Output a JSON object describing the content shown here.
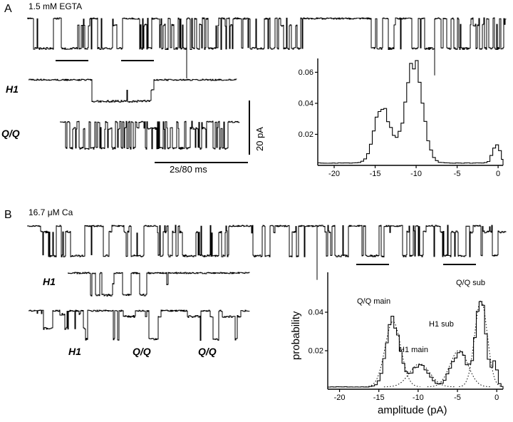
{
  "figure": {
    "panelA": {
      "label": "A",
      "condition": "1.5 mM EGTA",
      "trace1_label": "H1",
      "trace2_label": "Q/Q",
      "scale_v": "20 pA",
      "scale_h": "2s/80 ms"
    },
    "panelB": {
      "label": "B",
      "condition": "16.7 μM Ca",
      "h1_label": "H1",
      "bottom_labels": [
        "H1",
        "Q/Q",
        "Q/Q"
      ],
      "ylabel": "probability",
      "xlabel": "amplitude (pA)",
      "annotations": [
        "Q/Q main",
        "H1 main",
        "H1 sub",
        "Q/Q sub"
      ]
    }
  },
  "chart_data": [
    {
      "id": "traceA_top",
      "type": "line",
      "style": "single_channel_trace",
      "title": "continuous recording, 1.5 mM EGTA, openings downward",
      "baseline": 12,
      "amp": 42,
      "seed": 9,
      "flicker": 0.45,
      "subp": 0.22,
      "subdepth": 0.22,
      "segments": [
        [
          0,
          0.05,
          0.7
        ],
        [
          0.05,
          0.07,
          0.05
        ],
        [
          0.07,
          0.2,
          0.8
        ],
        [
          0.2,
          0.23,
          0.05
        ],
        [
          0.23,
          0.33,
          0.8
        ],
        [
          0.33,
          0.345,
          0.1
        ],
        [
          0.345,
          0.43,
          0.6
        ],
        [
          0.43,
          0.46,
          0.05
        ],
        [
          0.46,
          0.575,
          0.75
        ],
        [
          0.575,
          0.71,
          0.01
        ],
        [
          0.71,
          0.78,
          0.7
        ],
        [
          0.78,
          0.8,
          0.03
        ],
        [
          0.8,
          0.85,
          0.75
        ],
        [
          0.85,
          0.875,
          0.02
        ],
        [
          0.875,
          1,
          0.7
        ]
      ],
      "spikes": [
        [
          0.334,
          2.0
        ],
        [
          0.851,
          1.9
        ]
      ]
    },
    {
      "id": "traceA_h1",
      "type": "line",
      "style": "single_channel_trace",
      "title": "H1 expanded segment",
      "baseline": 9,
      "amp": 30,
      "seed": 3,
      "flicker": 0.12,
      "subp": 0.2,
      "subdepth": 0.5,
      "segments": [
        [
          0,
          0.045,
          0
        ],
        [
          0.045,
          0.1,
          0.45
        ],
        [
          0.1,
          0.42,
          0.06
        ],
        [
          0.42,
          0.5,
          0.5
        ],
        [
          0.5,
          0.56,
          0.35
        ],
        [
          0.56,
          0.6,
          0.5
        ],
        [
          0.6,
          0.62,
          0.2
        ],
        [
          0.62,
          1,
          0
        ]
      ]
    },
    {
      "id": "traceA_qq",
      "type": "line",
      "style": "single_channel_trace",
      "title": "Q/Q expanded segment",
      "baseline": 9,
      "amp": 37,
      "seed": 11,
      "flicker": 0.5,
      "subp": 0.3,
      "subdepth": 0.25,
      "segments": [
        [
          0,
          0.03,
          0.05
        ],
        [
          0.03,
          0.93,
          0.7
        ],
        [
          0.93,
          1,
          0.08
        ]
      ]
    },
    {
      "id": "traceB_top",
      "type": "line",
      "style": "single_channel_trace",
      "title": "continuous recording, 16.7 uM Ca, openings downward",
      "baseline": 9,
      "amp": 42,
      "seed": 21,
      "flicker": 0.4,
      "subp": 0.3,
      "subdepth": 0.2,
      "segments": [
        [
          0,
          0.02,
          0.05
        ],
        [
          0.02,
          0.06,
          0.75
        ],
        [
          0.06,
          0.07,
          0.05
        ],
        [
          0.07,
          0.105,
          0.8
        ],
        [
          0.105,
          0.15,
          0.02
        ],
        [
          0.15,
          0.175,
          0.7
        ],
        [
          0.175,
          0.2,
          0.03
        ],
        [
          0.2,
          0.24,
          0.8
        ],
        [
          0.24,
          0.265,
          0.03
        ],
        [
          0.265,
          0.31,
          0.7
        ],
        [
          0.31,
          0.42,
          0.85
        ],
        [
          0.42,
          0.465,
          0.04
        ],
        [
          0.465,
          0.515,
          0.8
        ],
        [
          0.515,
          0.54,
          0.04
        ],
        [
          0.54,
          0.565,
          0.7
        ],
        [
          0.565,
          0.615,
          0.02
        ],
        [
          0.615,
          0.67,
          0.8
        ],
        [
          0.67,
          0.695,
          0.05
        ],
        [
          0.695,
          0.745,
          0.8
        ],
        [
          0.745,
          0.775,
          0.04
        ],
        [
          0.775,
          0.835,
          0.8
        ],
        [
          0.835,
          0.862,
          0.04
        ],
        [
          0.862,
          0.928,
          0.8
        ],
        [
          0.928,
          0.945,
          0.08
        ],
        [
          0.945,
          1,
          0.75
        ]
      ],
      "spikes": [
        [
          0.605,
          1.8
        ]
      ]
    },
    {
      "id": "traceB_h1",
      "type": "line",
      "style": "single_channel_trace",
      "title": "H1 expanded segment",
      "baseline": 9,
      "amp": 31,
      "seed": 5,
      "flicker": 0.15,
      "subp": 0.3,
      "subdepth": 0.5,
      "segments": [
        [
          0,
          0.05,
          0
        ],
        [
          0.05,
          0.09,
          0.5
        ],
        [
          0.09,
          0.13,
          0.08
        ],
        [
          0.13,
          0.22,
          0.55
        ],
        [
          0.22,
          0.26,
          0.3
        ],
        [
          0.26,
          0.36,
          0.6
        ],
        [
          0.36,
          0.44,
          0.45
        ],
        [
          0.44,
          0.5,
          0.15
        ],
        [
          0.5,
          0.56,
          0.4
        ],
        [
          0.56,
          0.6,
          0.1
        ],
        [
          0.6,
          1,
          0
        ]
      ]
    },
    {
      "id": "traceB_bottom",
      "type": "line",
      "style": "single_channel_trace",
      "title": "expanded bursts: H1 then Q/Q then Q/Q",
      "baseline": 8,
      "amp": 40,
      "seed": 13,
      "flicker": 0.35,
      "subp": 0.35,
      "subdepth": 0.2,
      "segments": [
        [
          0,
          0.02,
          0
        ],
        [
          0.02,
          0.1,
          0.55,
          0.62
        ],
        [
          0.1,
          0.13,
          0.05,
          0.62
        ],
        [
          0.13,
          0.255,
          0.6,
          0.62
        ],
        [
          0.255,
          0.38,
          0
        ],
        [
          0.38,
          0.47,
          0.6,
          1
        ],
        [
          0.47,
          0.5,
          0.1,
          1
        ],
        [
          0.5,
          0.6,
          0.65,
          1
        ],
        [
          0.6,
          0.68,
          0
        ],
        [
          0.68,
          0.78,
          0.6,
          1
        ],
        [
          0.78,
          0.81,
          0.1,
          1
        ],
        [
          0.81,
          0.955,
          0.6,
          1
        ],
        [
          0.955,
          1,
          0
        ]
      ]
    },
    {
      "id": "histA",
      "type": "bar",
      "style": "step_histogram",
      "title": "amplitude histogram, 1.5 mM EGTA",
      "xlim": [
        -22,
        0.6
      ],
      "ylim": [
        0,
        0.068
      ],
      "bin": 0.35,
      "xticks": [
        -20,
        -15,
        -10,
        -5,
        0
      ],
      "xtick_labels": [
        "-20",
        "-15",
        "-10",
        "-5",
        "0"
      ],
      "yticks": [
        0.02,
        0.04,
        0.06
      ],
      "ytick_labels": [
        "0.02",
        "0.04",
        "0.06"
      ],
      "floor": 0.0015,
      "seed": 4,
      "ml": 32,
      "tickfs": 11,
      "components": [
        {
          "c": -14.2,
          "h": 0.033,
          "s": 0.9
        },
        {
          "c": -12.2,
          "h": 0.007,
          "s": 1.4
        },
        {
          "c": -10.2,
          "h": 0.063,
          "s": 1.0
        },
        {
          "c": -0.2,
          "h": 0.012,
          "s": 0.45
        }
      ]
    },
    {
      "id": "histB",
      "type": "bar",
      "style": "step_histogram_with_gaussian_fits",
      "title": "amplitude histogram, 16.7 uM Ca",
      "xlim": [
        -21.5,
        0.8
      ],
      "ylim": [
        0,
        0.06
      ],
      "bin": 0.35,
      "xticks": [
        -20,
        -15,
        -10,
        -5,
        0
      ],
      "xtick_labels": [
        "-20",
        "-15",
        "-10",
        "-5",
        "0"
      ],
      "yticks": [
        0.02,
        0.04
      ],
      "ytick_labels": [
        "0.02",
        "0.04"
      ],
      "floor": 0.0012,
      "seed": 8,
      "ml": 24,
      "tickfs": 11,
      "components": [
        {
          "c": -13.2,
          "h": 0.035,
          "s": 0.85
        },
        {
          "c": -9.8,
          "h": 0.011,
          "s": 1.1
        },
        {
          "c": -4.8,
          "h": 0.018,
          "s": 1.0
        },
        {
          "c": -2.0,
          "h": 0.047,
          "s": 0.65
        },
        {
          "c": -0.2,
          "h": 0.012,
          "s": 0.3
        }
      ],
      "fits": [
        {
          "c": -13.2,
          "h": 0.034,
          "s": 1.0
        },
        {
          "c": -9.8,
          "h": 0.012,
          "s": 1.3
        },
        {
          "c": -4.8,
          "h": 0.019,
          "s": 1.15
        },
        {
          "c": -2.0,
          "h": 0.045,
          "s": 0.8
        }
      ]
    }
  ]
}
